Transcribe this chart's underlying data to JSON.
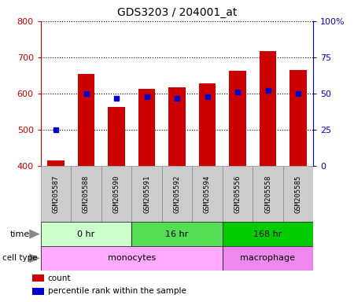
{
  "title": "GDS3203 / 204001_at",
  "samples": [
    "GSM205587",
    "GSM205588",
    "GSM205590",
    "GSM205591",
    "GSM205592",
    "GSM205594",
    "GSM205556",
    "GSM205558",
    "GSM205585"
  ],
  "count_values": [
    415,
    655,
    563,
    614,
    617,
    628,
    663,
    717,
    666
  ],
  "percentile_values": [
    25,
    50,
    47,
    48,
    47,
    48,
    51,
    52,
    50
  ],
  "baseline": 400,
  "ylim_left": [
    400,
    800
  ],
  "ylim_right": [
    0,
    100
  ],
  "yticks_left": [
    400,
    500,
    600,
    700,
    800
  ],
  "yticks_right": [
    0,
    25,
    50,
    75,
    100
  ],
  "ytick_right_labels": [
    "0",
    "25",
    "50",
    "75",
    "100%"
  ],
  "bar_color": "#cc0000",
  "percentile_color": "#0000cc",
  "bar_width": 0.55,
  "time_groups": [
    {
      "label": "0 hr",
      "start": 0,
      "end": 3,
      "color": "#ccffcc"
    },
    {
      "label": "16 hr",
      "start": 3,
      "end": 6,
      "color": "#55dd55"
    },
    {
      "label": "168 hr",
      "start": 6,
      "end": 9,
      "color": "#00cc00"
    }
  ],
  "cell_type_groups": [
    {
      "label": "monocytes",
      "start": 0,
      "end": 6,
      "color": "#ffaaff"
    },
    {
      "label": "macrophage",
      "start": 6,
      "end": 9,
      "color": "#ee88ee"
    }
  ],
  "legend_count_label": "count",
  "legend_percentile_label": "percentile rank within the sample",
  "left_tick_color": "#cc0000",
  "right_tick_color": "#0000cc",
  "sample_box_color": "#cccccc",
  "sample_box_edge": "#888888"
}
